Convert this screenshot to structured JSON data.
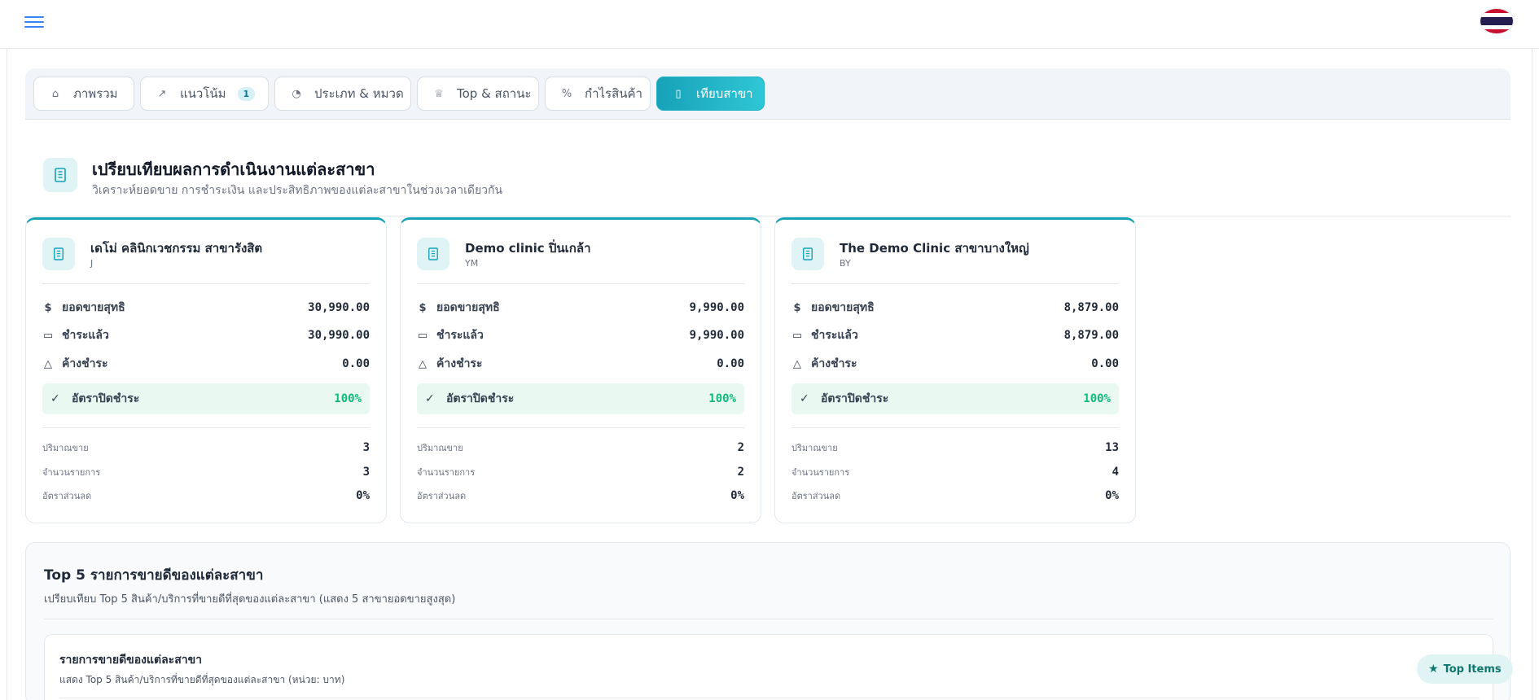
{
  "header": {
    "menu_icon": "hamburger-menu-icon",
    "flag_icon": "thailand-flag-icon"
  },
  "tabs": [
    {
      "label": "ภาพรวม",
      "icon": "home-icon",
      "badge": null,
      "active": false
    },
    {
      "label": "แนวโน้ม",
      "icon": "trend-icon",
      "badge": "1",
      "active": false
    },
    {
      "label": "ประเภท & หมวด",
      "icon": "pie-chart-icon",
      "badge": null,
      "active": false
    },
    {
      "label": "Top & สถานะ",
      "icon": "trophy-icon",
      "badge": null,
      "active": false
    },
    {
      "label": "กำไรสินค้า",
      "icon": "percent-icon",
      "badge": null,
      "active": false
    },
    {
      "label": "เทียบสาขา",
      "icon": "building-icon",
      "badge": null,
      "active": true
    }
  ],
  "section": {
    "title": "เปรียบเทียบผลการดำเนินงานแต่ละสาขา",
    "subtitle": "วิเคราะห์ยอดขาย การชำระเงิน และประสิทธิภาพของแต่ละสาขาในช่วงเวลาเดียวกัน"
  },
  "labels": {
    "net_sales": "ยอดขายสุทธิ",
    "paid": "ชำระแล้ว",
    "outstanding": "ค้างชำระ",
    "close_rate": "อัตราปิดชำระ",
    "quantity": "ปริมาณขาย",
    "transactions": "จำนวนรายการ",
    "discount_rate": "อัตราส่วนลด"
  },
  "branches": [
    {
      "name": "เดโม่ คลินิกเวชกรรม สาขารังสิต",
      "code": "J",
      "net_sales": "30,990.00",
      "paid": "30,990.00",
      "outstanding": "0.00",
      "close_rate": "100%",
      "quantity": "3",
      "transactions": "3",
      "discount_rate": "0%"
    },
    {
      "name": "Demo clinic ปิ่นเกล้า",
      "code": "YM",
      "net_sales": "9,990.00",
      "paid": "9,990.00",
      "outstanding": "0.00",
      "close_rate": "100%",
      "quantity": "2",
      "transactions": "2",
      "discount_rate": "0%"
    },
    {
      "name": "The Demo Clinic สาขาบางใหญ่",
      "code": "BY",
      "net_sales": "8,879.00",
      "paid": "8,879.00",
      "outstanding": "0.00",
      "close_rate": "100%",
      "quantity": "13",
      "transactions": "4",
      "discount_rate": "0%"
    }
  ],
  "top5": {
    "title": "Top 5 รายการขายดีของแต่ละสาขา",
    "subtitle": "เปรียบเทียบ Top 5 สินค้า/บริการที่ขายดีที่สุดของแต่ละสาขา (แสดง 5 สาขายอดขายสูงสุด)",
    "inner_title": "รายการขายดีของแต่ละสาขา",
    "inner_subtitle": "แสดง Top 5 สินค้า/บริการที่ขายดีที่สุดของแต่ละสาขา (หน่วย: บาท)",
    "pill_label": "Top Items",
    "pill_icon": "star-icon"
  }
}
